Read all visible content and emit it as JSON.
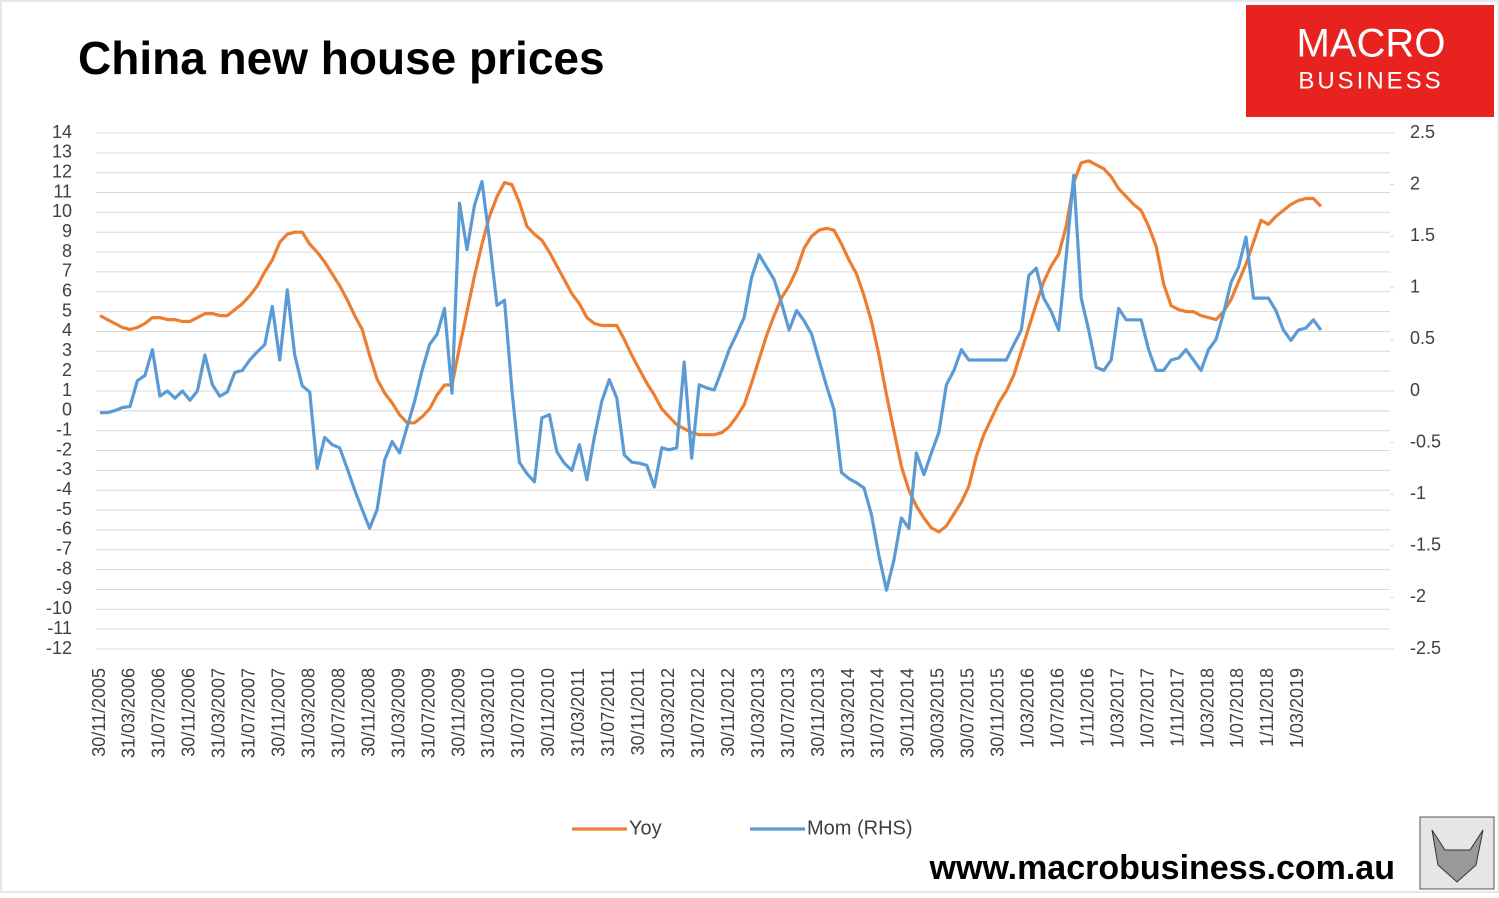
{
  "chart_data": {
    "type": "line",
    "title": "China new house prices",
    "categories": [
      "30/11/2005",
      null,
      null,
      null,
      "31/03/2006",
      null,
      null,
      null,
      "31/07/2006",
      null,
      null,
      null,
      "30/11/2006",
      null,
      null,
      null,
      "31/03/2007",
      null,
      null,
      null,
      "31/07/2007",
      null,
      null,
      null,
      "30/11/2007",
      null,
      null,
      null,
      "31/03/2008",
      null,
      null,
      null,
      "31/07/2008",
      null,
      null,
      null,
      "30/11/2008",
      null,
      null,
      null,
      "31/03/2009",
      null,
      null,
      null,
      "31/07/2009",
      null,
      null,
      null,
      "30/11/2009",
      null,
      null,
      null,
      "31/03/2010",
      null,
      null,
      null,
      "31/07/2010",
      null,
      null,
      null,
      "30/11/2010",
      null,
      null,
      null,
      "31/03/2011",
      null,
      null,
      null,
      "31/07/2011",
      null,
      null,
      null,
      "30/11/2011",
      null,
      null,
      null,
      "31/03/2012",
      null,
      null,
      null,
      "31/07/2012",
      null,
      null,
      null,
      "30/11/2012",
      null,
      null,
      null,
      "31/03/2013",
      null,
      null,
      null,
      "31/07/2013",
      null,
      null,
      null,
      "30/11/2013",
      null,
      null,
      null,
      "31/03/2014",
      null,
      null,
      null,
      "31/07/2014",
      null,
      null,
      null,
      "30/11/2014",
      null,
      null,
      null,
      "30/03/2015",
      null,
      null,
      null,
      "30/07/2015",
      null,
      null,
      null,
      "30/11/2015",
      null,
      null,
      null,
      "1/03/2016",
      null,
      null,
      null,
      "1/07/2016",
      null,
      null,
      null,
      "1/11/2016",
      null,
      null,
      null,
      "1/03/2017",
      null,
      null,
      null,
      "1/07/2017",
      null,
      null,
      null,
      "1/11/2017",
      null,
      null,
      null,
      "1/03/2018",
      null,
      null,
      null,
      "1/07/2018",
      null,
      null,
      null,
      "1/11/2018",
      null,
      null,
      null,
      "1/03/2019",
      null,
      null,
      null
    ],
    "series": [
      {
        "name": "Yoy",
        "color": "#ed7d31",
        "axis": "y",
        "values": [
          4.8,
          4.6,
          4.4,
          4.2,
          4.1,
          4.2,
          4.4,
          4.7,
          4.7,
          4.6,
          4.6,
          4.5,
          4.5,
          4.7,
          4.9,
          4.9,
          4.8,
          4.8,
          5.1,
          5.4,
          5.8,
          6.3,
          7.0,
          7.6,
          8.5,
          8.9,
          9.0,
          9.0,
          8.4,
          8.0,
          7.5,
          6.9,
          6.3,
          5.6,
          4.8,
          4.1,
          2.8,
          1.6,
          0.9,
          0.4,
          -0.2,
          -0.6,
          -0.6,
          -0.3,
          0.1,
          0.8,
          1.3,
          1.3,
          3.2,
          5.0,
          6.8,
          8.4,
          9.8,
          10.8,
          11.5,
          11.4,
          10.5,
          9.3,
          8.9,
          8.6,
          8.0,
          7.3,
          6.6,
          5.9,
          5.4,
          4.7,
          4.4,
          4.3,
          4.3,
          4.3,
          3.6,
          2.8,
          2.1,
          1.4,
          0.8,
          0.1,
          -0.3,
          -0.7,
          -0.9,
          -1.1,
          -1.2,
          -1.2,
          -1.2,
          -1.1,
          -0.8,
          -0.3,
          0.3,
          1.4,
          2.6,
          3.8,
          4.8,
          5.7,
          6.3,
          7.1,
          8.2,
          8.8,
          9.1,
          9.2,
          9.1,
          8.4,
          7.6,
          6.9,
          5.8,
          4.5,
          2.8,
          0.8,
          -1.0,
          -2.8,
          -4.0,
          -4.8,
          -5.4,
          -5.9,
          -6.1,
          -5.8,
          -5.2,
          -4.6,
          -3.8,
          -2.3,
          -1.2,
          -0.4,
          0.4,
          1.0,
          1.8,
          3.0,
          4.2,
          5.4,
          6.5,
          7.3,
          7.9,
          9.3,
          11.5,
          12.5,
          12.6,
          12.4,
          12.2,
          11.8,
          11.2,
          10.8,
          10.4,
          10.1,
          9.3,
          8.3,
          6.4,
          5.3,
          5.1,
          5.0,
          5.0,
          4.8,
          4.7,
          4.6,
          5.0,
          5.6,
          6.5,
          7.4,
          8.5,
          9.6,
          9.4,
          9.8,
          10.1,
          10.4,
          10.6,
          10.7,
          10.7,
          10.3
        ]
      },
      {
        "name": "Mom (RHS)",
        "color": "#5b9bd5",
        "axis": "y2",
        "values": [
          -0.21,
          -0.21,
          -0.19,
          -0.16,
          -0.15,
          0.1,
          0.15,
          0.4,
          -0.05,
          0.0,
          -0.07,
          0.0,
          -0.09,
          0.0,
          0.35,
          0.06,
          -0.05,
          -0.01,
          0.18,
          0.2,
          0.3,
          0.38,
          0.45,
          0.82,
          0.3,
          0.98,
          0.35,
          0.05,
          -0.01,
          -0.75,
          -0.45,
          -0.52,
          -0.55,
          -0.75,
          -0.96,
          -1.15,
          -1.33,
          -1.15,
          -0.67,
          -0.49,
          -0.6,
          -0.35,
          -0.1,
          0.2,
          0.45,
          0.55,
          0.8,
          -0.02,
          1.82,
          1.37,
          1.8,
          2.03,
          1.46,
          0.83,
          0.88,
          0.01,
          -0.69,
          -0.8,
          -0.88,
          -0.26,
          -0.23,
          -0.59,
          -0.7,
          -0.77,
          -0.52,
          -0.86,
          -0.45,
          -0.1,
          0.11,
          -0.07,
          -0.62,
          -0.69,
          -0.7,
          -0.72,
          -0.93,
          -0.55,
          -0.57,
          -0.55,
          0.28,
          -0.65,
          0.06,
          0.03,
          0.01,
          0.2,
          0.4,
          0.55,
          0.71,
          1.1,
          1.32,
          1.2,
          1.08,
          0.85,
          0.59,
          0.78,
          0.68,
          0.55,
          0.3,
          0.05,
          -0.18,
          -0.79,
          -0.85,
          -0.89,
          -0.94,
          -1.2,
          -1.6,
          -1.93,
          -1.64,
          -1.23,
          -1.33,
          -0.6,
          -0.81,
          -0.6,
          -0.4,
          0.06,
          0.2,
          0.4,
          0.3,
          0.3,
          0.3,
          0.3,
          0.3,
          0.3,
          0.45,
          0.59,
          1.12,
          1.19,
          0.9,
          0.77,
          0.59,
          1.3,
          2.09,
          0.9,
          0.59,
          0.23,
          0.2,
          0.3,
          0.8,
          0.69,
          0.69,
          0.69,
          0.4,
          0.2,
          0.2,
          0.3,
          0.32,
          0.4,
          0.3,
          0.2,
          0.4,
          0.5,
          0.75,
          1.05,
          1.2,
          1.49,
          0.9,
          0.9,
          0.9,
          0.78,
          0.59,
          0.49,
          0.59,
          0.61,
          0.69,
          0.59
        ]
      }
    ],
    "ylim": [
      -12,
      14
    ],
    "yticks": [
      14,
      13,
      12,
      11,
      10,
      9,
      8,
      7,
      6,
      5,
      4,
      3,
      2,
      1,
      0,
      -1,
      -2,
      -3,
      -4,
      -5,
      -6,
      -7,
      -8,
      -9,
      -10,
      -11,
      -12
    ],
    "y2lim": [
      -2.5,
      2.5
    ],
    "y2ticks": [
      2.5,
      2,
      1.5,
      1,
      0.5,
      0,
      -0.5,
      -1,
      -1.5,
      -2,
      -2.5
    ],
    "grid": true,
    "legend": "bottom"
  },
  "logo": {
    "line1": "MACRO",
    "line2": "BUSINESS"
  },
  "footer": "www.macrobusiness.com.au"
}
